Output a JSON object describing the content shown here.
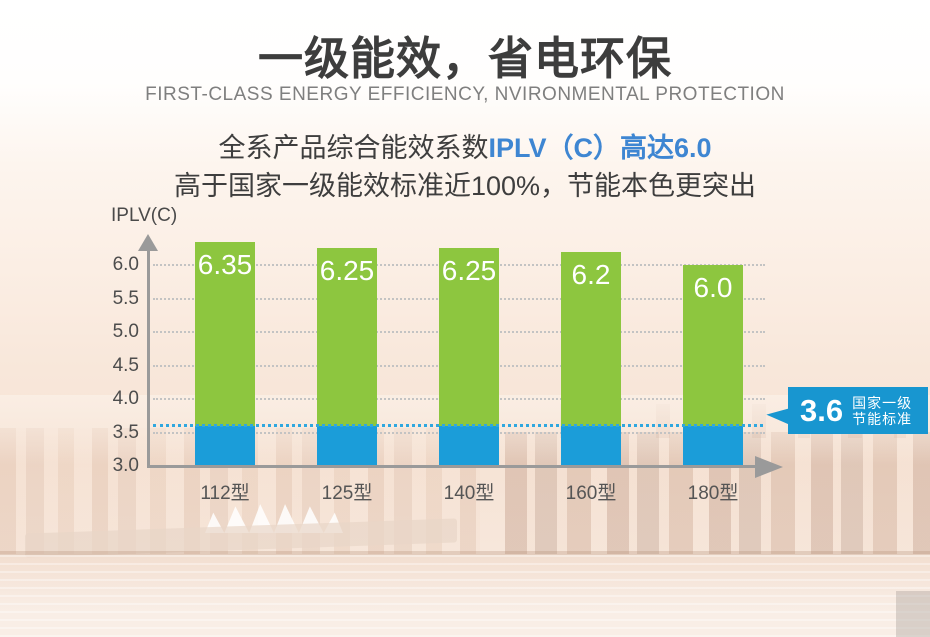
{
  "header": {
    "title": "一级能效，省电环保",
    "subtitle": "FIRST-CLASS ENERGY EFFICIENCY, NVIRONMENTAL PROTECTION",
    "line1_prefix": "全系产品综合能效系数",
    "line1_highlight": "IPLV（C）高达6.0",
    "line2": "高于国家一级能效标准近100%，节能本色更突出"
  },
  "chart_data": {
    "type": "bar",
    "title": "",
    "xlabel": "",
    "ylabel": "IPLV(C)",
    "categories": [
      "112型",
      "125型",
      "140型",
      "160型",
      "180型"
    ],
    "values": [
      6.35,
      6.25,
      6.25,
      6.2,
      6.0
    ],
    "bar_labels": [
      "6.35",
      "6.25",
      "6.25",
      "6.2",
      "6.0"
    ],
    "baseline": 3.0,
    "ylim": [
      3.0,
      6.5
    ],
    "yticks": [
      3.0,
      3.5,
      4.0,
      4.5,
      5.0,
      5.5,
      6.0
    ],
    "ytick_labels": [
      "3.0",
      "3.5",
      "4.0",
      "4.5",
      "5.0",
      "5.5",
      "6.0"
    ],
    "grid": true,
    "legend": "none",
    "reference_line": {
      "value": 3.6,
      "label_value": "3.6",
      "label_line1": "国家一级",
      "label_line2": "节能标准"
    },
    "colors": {
      "bar_above_reference": "#8dc63f",
      "bar_below_reference": "#1b9dd9",
      "reference_line": "#2fa7df",
      "callout_bg": "#1896d0",
      "grid": "#c3c3c3",
      "axis": "#9a9a9a",
      "highlight_text": "#3e86d2"
    }
  },
  "icons": {
    "y_axis_arrow": "arrow-up",
    "x_axis_arrow": "arrow-right",
    "callout_tail": "pointer-left"
  }
}
